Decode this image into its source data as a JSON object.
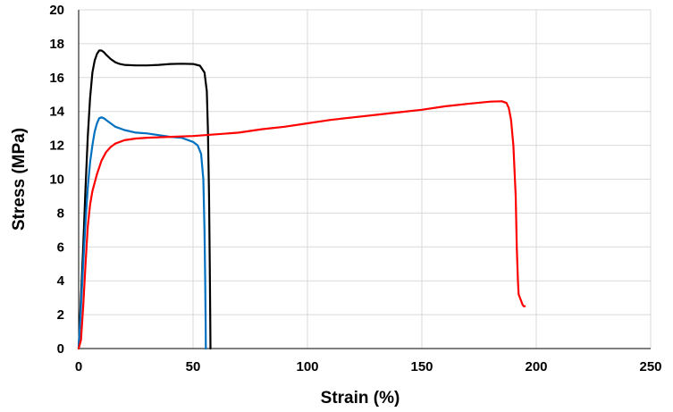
{
  "chart_data": {
    "type": "line",
    "xlabel": "Strain (%)",
    "ylabel": "Stress (MPa)",
    "xlim": [
      0,
      250
    ],
    "ylim": [
      0,
      20
    ],
    "xticks": [
      0,
      50,
      100,
      150,
      200,
      250
    ],
    "yticks": [
      0,
      2,
      4,
      6,
      8,
      10,
      12,
      14,
      16,
      18,
      20
    ],
    "grid": true,
    "series": [
      {
        "color": "#000000",
        "x": [
          0,
          1,
          2,
          3,
          4,
          5,
          6,
          7,
          8,
          9,
          10,
          11,
          12,
          14,
          16,
          18,
          20,
          25,
          30,
          35,
          40,
          45,
          50,
          53,
          55,
          56,
          56.5,
          57,
          57.3,
          57.5,
          57.6
        ],
        "y": [
          0,
          3,
          6,
          9.5,
          12.5,
          14.8,
          16.3,
          17.0,
          17.4,
          17.6,
          17.6,
          17.5,
          17.35,
          17.1,
          16.9,
          16.8,
          16.75,
          16.72,
          16.72,
          16.75,
          16.8,
          16.82,
          16.8,
          16.7,
          16.3,
          15.2,
          13.0,
          9.0,
          5.0,
          2.0,
          0
        ]
      },
      {
        "color": "#0070c0",
        "x": [
          0,
          1,
          2,
          3,
          4,
          5,
          6,
          7,
          8,
          9,
          10,
          11,
          12,
          14,
          16,
          20,
          25,
          30,
          35,
          40,
          45,
          50,
          52,
          53.5,
          54.5,
          55,
          55.3,
          55.5,
          55.6
        ],
        "y": [
          0,
          2.5,
          5,
          7.5,
          9.5,
          11.0,
          12.0,
          12.8,
          13.3,
          13.6,
          13.65,
          13.6,
          13.5,
          13.3,
          13.1,
          12.9,
          12.75,
          12.7,
          12.6,
          12.5,
          12.45,
          12.2,
          12.0,
          11.5,
          10.0,
          7.0,
          4.0,
          1.5,
          0
        ]
      },
      {
        "color": "#ff0000",
        "x": [
          0,
          1,
          2,
          3,
          4,
          5,
          6,
          8,
          10,
          12,
          14,
          16,
          20,
          25,
          30,
          40,
          50,
          60,
          70,
          80,
          90,
          100,
          110,
          120,
          130,
          140,
          150,
          160,
          170,
          180,
          185,
          187,
          188,
          189,
          190,
          191,
          191.5,
          192,
          192.3,
          193,
          194,
          194.5,
          195
        ],
        "y": [
          0,
          0.5,
          2.5,
          5,
          7.2,
          8.5,
          9.3,
          10.3,
          11.1,
          11.6,
          11.9,
          12.1,
          12.3,
          12.4,
          12.45,
          12.5,
          12.55,
          12.65,
          12.75,
          12.95,
          13.1,
          13.3,
          13.5,
          13.65,
          13.8,
          13.95,
          14.1,
          14.3,
          14.45,
          14.58,
          14.6,
          14.5,
          14.2,
          13.5,
          12.0,
          9.0,
          6.0,
          4.0,
          3.2,
          2.95,
          2.6,
          2.5,
          2.5
        ]
      }
    ]
  }
}
